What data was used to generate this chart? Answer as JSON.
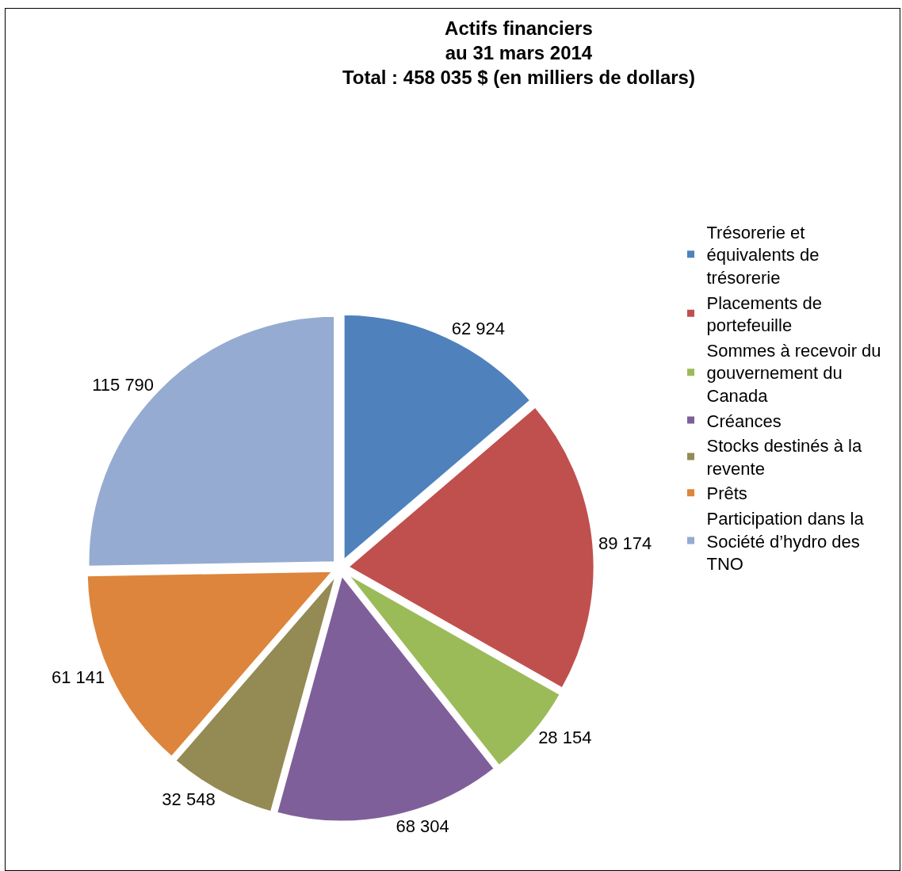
{
  "chart_data": {
    "type": "pie",
    "title": "Actifs financiers\nau 31 mars 2014\nTotal : 458 035 $ (en milliers de dollars)",
    "categories": [
      "Trésorerie et équivalents de trésorerie",
      "Placements de portefeuille",
      "Sommes à recevoir du gouvernement du Canada",
      "Créances",
      "Stocks destinés à la revente",
      "Prêts",
      "Participation dans la Société d’hydro des TNO"
    ],
    "values": [
      62924,
      89174,
      28154,
      68304,
      32548,
      61141,
      115790
    ],
    "value_labels": [
      "62 924",
      "89 174",
      "28 154",
      "68 304",
      "32 548",
      "61 141",
      "115 790"
    ],
    "colors": [
      "#4f81bd",
      "#c0504d",
      "#9bbb59",
      "#7f5f9a",
      "#948a54",
      "#dd853c",
      "#95abd1"
    ],
    "legend": "right"
  }
}
